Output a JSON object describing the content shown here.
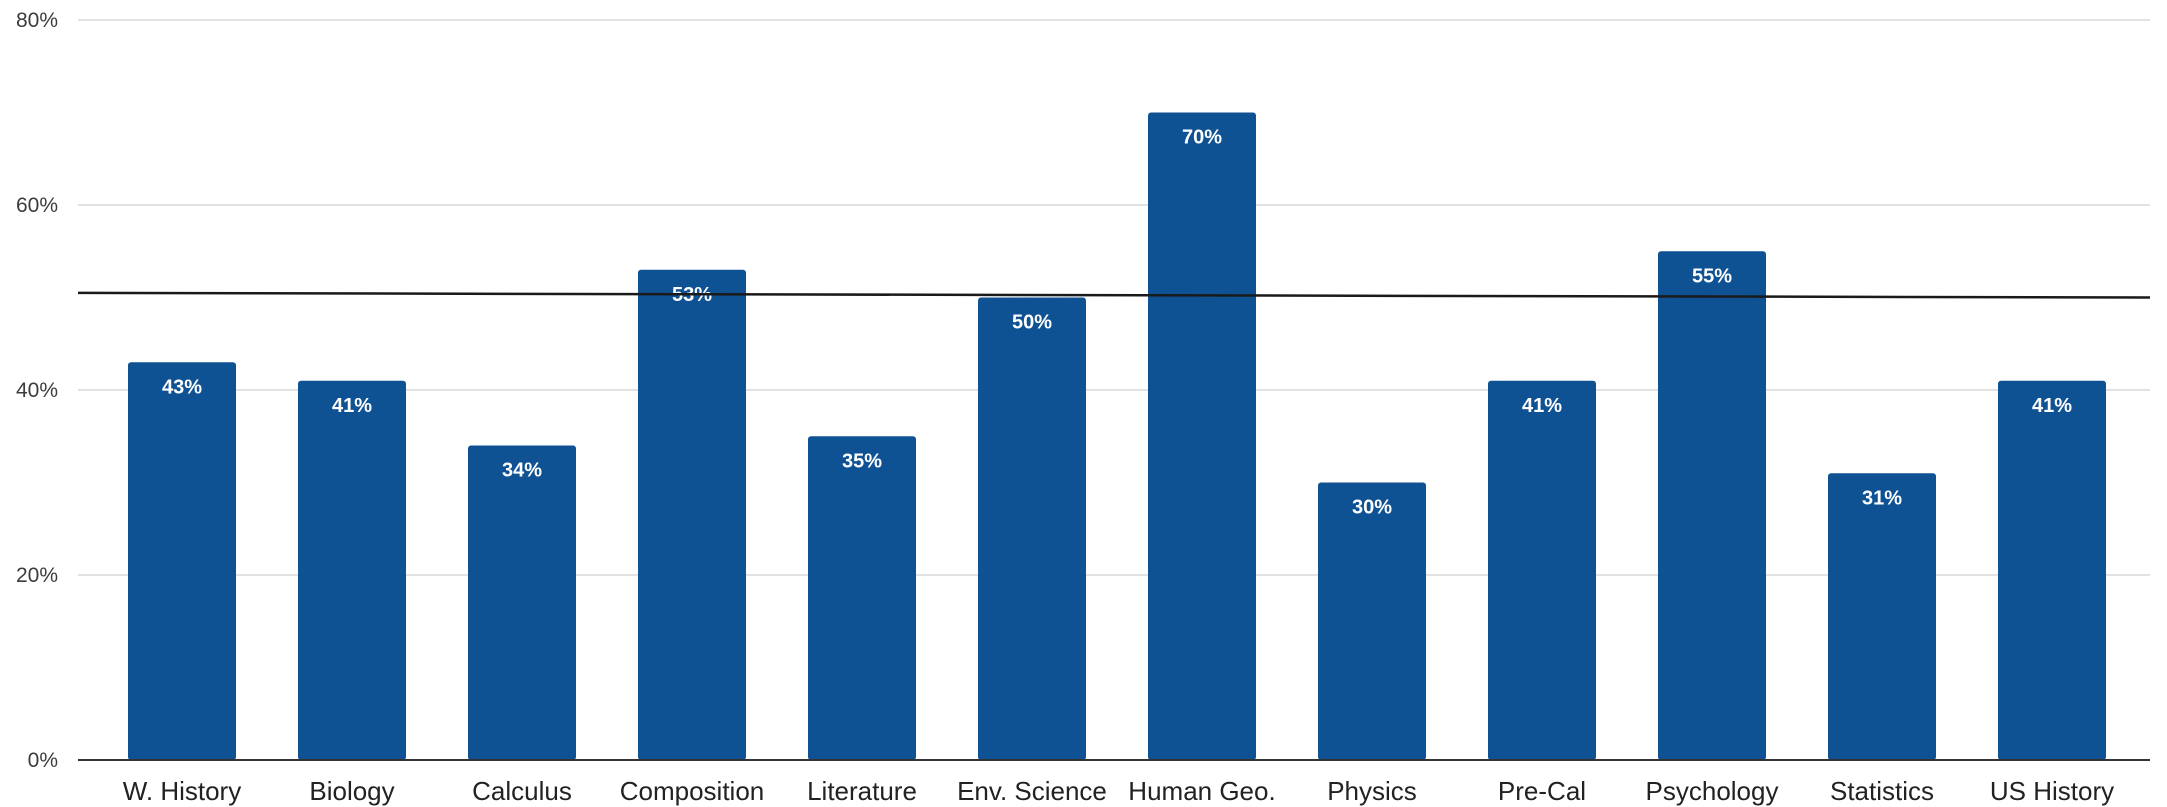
{
  "chart_data": {
    "type": "bar",
    "categories": [
      "W. History",
      "Biology",
      "Calculus",
      "Composition",
      "Literature",
      "Env. Science",
      "Human Geo.",
      "Physics",
      "Pre-Cal",
      "Psychology",
      "Statistics",
      "US History"
    ],
    "values": [
      43,
      41,
      34,
      53,
      35,
      50,
      70,
      30,
      41,
      55,
      31,
      41
    ],
    "data_labels": [
      "43%",
      "41%",
      "34%",
      "53%",
      "35%",
      "50%",
      "70%",
      "30%",
      "41%",
      "55%",
      "31%",
      "41%"
    ],
    "title": "",
    "xlabel": "",
    "ylabel": "",
    "ylim": [
      0,
      80
    ],
    "yticks": [
      0,
      20,
      40,
      60,
      80
    ],
    "ytick_labels": [
      "0%",
      "20%",
      "40%",
      "60%",
      "80%"
    ],
    "reference_line": {
      "y_start": 50.5,
      "y_end": 50.0
    },
    "grid": true,
    "legend": "none",
    "colors": {
      "bar": "#0f5294",
      "grid": "#d9d9d9",
      "axis": "#333333",
      "reference_line": "#1a1a1a",
      "data_label": "#ffffff"
    }
  }
}
